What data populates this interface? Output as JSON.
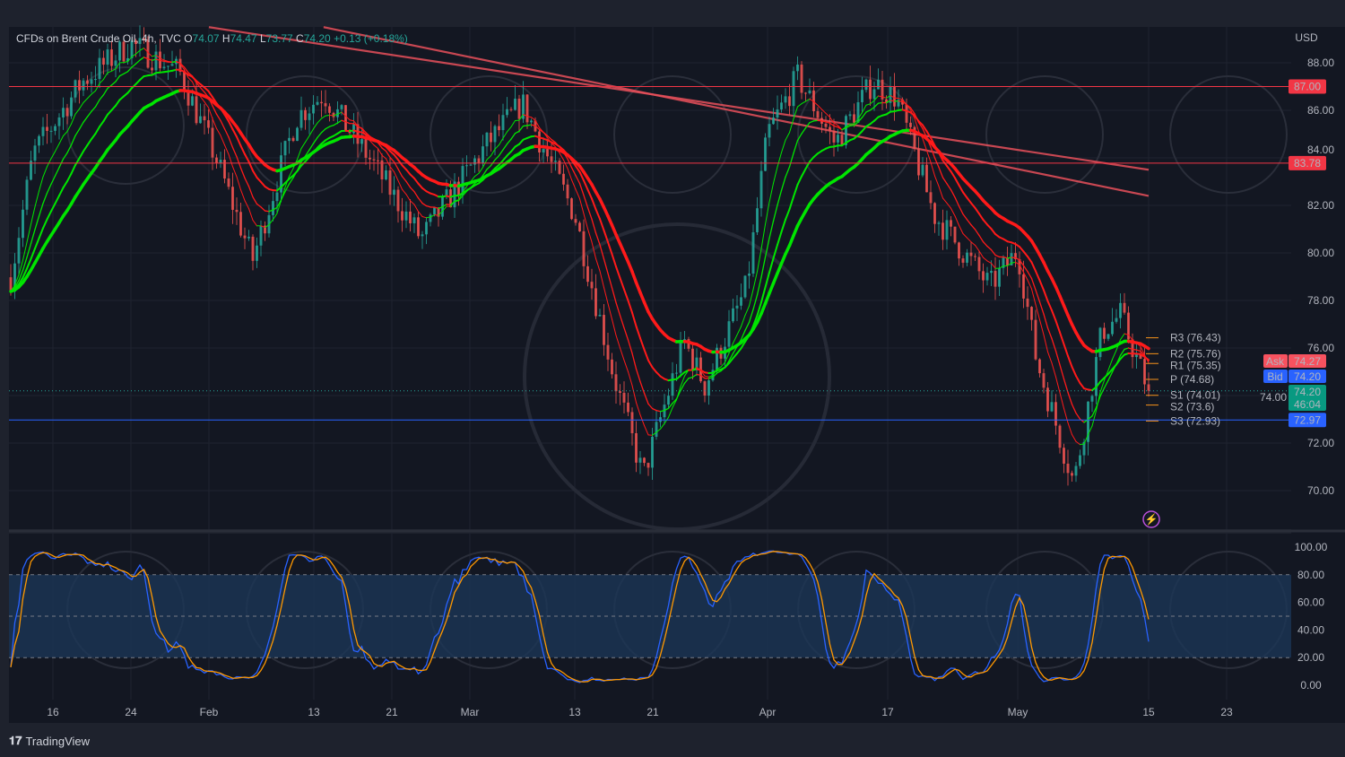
{
  "header": {
    "symbol": "CFDs on Brent Crude Oil, 4h, TVC",
    "open_label": "O",
    "open": "74.07",
    "high_label": "H",
    "high": "74.47",
    "low_label": "L",
    "low": "73.77",
    "close_label": "C",
    "close": "74.20",
    "change": "+0.13 (+0.18%)"
  },
  "footer": {
    "brand": "TradingView",
    "logo_icon": "tradingview-logo-icon"
  },
  "colors": {
    "background": "#131722",
    "up": "#26a69a",
    "down": "#ef5350",
    "ma_up": "#00e600",
    "ma_down": "#ff1a1a",
    "resistance": "#f23645",
    "support": "#2962ff",
    "pivot": "#f7931a",
    "stoch_k": "#2962ff",
    "stoch_d": "#ff9800"
  },
  "chart_data": [
    {
      "type": "candlestick",
      "title": "CFDs on Brent Crude Oil, 4h, TVC",
      "currency": "USD",
      "ylim": [
        69,
        89.5
      ],
      "y_ticks": [
        "70.00",
        "72.00",
        "74.00",
        "76.00",
        "78.00",
        "80.00",
        "82.00",
        "84.00",
        "86.00",
        "88.00"
      ],
      "x_ticks": [
        {
          "label": "16",
          "date": "Jan 16"
        },
        {
          "label": "24",
          "date": "Jan 24"
        },
        {
          "label": "Feb",
          "date": "Feb 1"
        },
        {
          "label": "13",
          "date": "Feb 13"
        },
        {
          "label": "21",
          "date": "Feb 21"
        },
        {
          "label": "Mar",
          "date": "Mar 1"
        },
        {
          "label": "13",
          "date": "Mar 13"
        },
        {
          "label": "21",
          "date": "Mar 21"
        },
        {
          "label": "Apr",
          "date": "Apr 1"
        },
        {
          "label": "17",
          "date": "Apr 17"
        },
        {
          "label": "May",
          "date": "May 1"
        },
        {
          "label": "15",
          "date": "May 15"
        },
        {
          "label": "23",
          "date": "May 23"
        }
      ],
      "price_path": [
        {
          "date": "Jan 12",
          "close": 79.7
        },
        {
          "date": "Jan 14",
          "close": 84.2
        },
        {
          "date": "Jan 19",
          "close": 87.2
        },
        {
          "date": "Jan 24",
          "close": 88.8
        },
        {
          "date": "Jan 29",
          "close": 87.6
        },
        {
          "date": "Feb 2",
          "close": 83.8
        },
        {
          "date": "Feb 6",
          "close": 79.7
        },
        {
          "date": "Feb 11",
          "close": 85.7
        },
        {
          "date": "Feb 14",
          "close": 86.7
        },
        {
          "date": "Feb 19",
          "close": 83.8
        },
        {
          "date": "Feb 24",
          "close": 80.6
        },
        {
          "date": "Mar 3",
          "close": 84.6
        },
        {
          "date": "Mar 7",
          "close": 86.3
        },
        {
          "date": "Mar 13",
          "close": 81.6
        },
        {
          "date": "Mar 17",
          "close": 74.8
        },
        {
          "date": "Mar 20",
          "close": 70.6
        },
        {
          "date": "Mar 24",
          "close": 76.3
        },
        {
          "date": "Mar 26",
          "close": 74.4
        },
        {
          "date": "Mar 30",
          "close": 78.6
        },
        {
          "date": "Apr 1",
          "close": 85.0
        },
        {
          "date": "Apr 5",
          "close": 87.4
        },
        {
          "date": "Apr 10",
          "close": 84.6
        },
        {
          "date": "Apr 15",
          "close": 87.2
        },
        {
          "date": "Apr 18",
          "close": 86.5
        },
        {
          "date": "Apr 22",
          "close": 81.6
        },
        {
          "date": "Apr 25",
          "close": 80.1
        },
        {
          "date": "Apr 28",
          "close": 78.6
        },
        {
          "date": "May 1",
          "close": 80.1
        },
        {
          "date": "May 3",
          "close": 75.5
        },
        {
          "date": "May 7",
          "close": 70.3
        },
        {
          "date": "May 10",
          "close": 76.7
        },
        {
          "date": "May 12",
          "close": 77.4
        },
        {
          "date": "May 15",
          "close": 74.2
        }
      ],
      "long_moving_averages": [
        {
          "start": {
            "date": "Feb 1",
            "value": 89.5
          },
          "end": {
            "date": "May 15",
            "value": 83.5
          }
        },
        {
          "start": {
            "date": "Feb 14",
            "value": 89.5
          },
          "end": {
            "date": "May 15",
            "value": 82.4
          }
        }
      ],
      "horizontal_levels": [
        {
          "value": 87.0,
          "label": "87.00",
          "color": "#f23645"
        },
        {
          "value": 83.78,
          "label": "83.78",
          "color": "#f23645"
        },
        {
          "value": 72.97,
          "label": "72.97",
          "color": "#2962ff"
        },
        {
          "value": 74.2,
          "label": "74.20",
          "color": "#26a69a",
          "style": "dotted"
        }
      ],
      "pivots": [
        {
          "label": "R3 (76.43)",
          "value": 76.43
        },
        {
          "label": "R2 (75.76)",
          "value": 75.76
        },
        {
          "label": "R1 (75.35)",
          "value": 75.35
        },
        {
          "label": "P (74.68)",
          "value": 74.68
        },
        {
          "label": "S1 (74.01)",
          "value": 74.01
        },
        {
          "label": "S2 (73.6)",
          "value": 73.6
        },
        {
          "label": "S3 (72.93)",
          "value": 72.93
        }
      ],
      "price_tags": {
        "ask_label": "Ask",
        "ask": "74.27",
        "bid_label": "Bid",
        "bid": "74.20",
        "last": "74.20",
        "countdown": "46:04"
      }
    },
    {
      "type": "line",
      "indicator": "stochastic",
      "ylim": [
        0,
        100
      ],
      "y_ticks": [
        "0.00",
        "20.00",
        "40.00",
        "60.00",
        "80.00",
        "100.00"
      ],
      "band": [
        20,
        80
      ],
      "midline": 50
    }
  ]
}
